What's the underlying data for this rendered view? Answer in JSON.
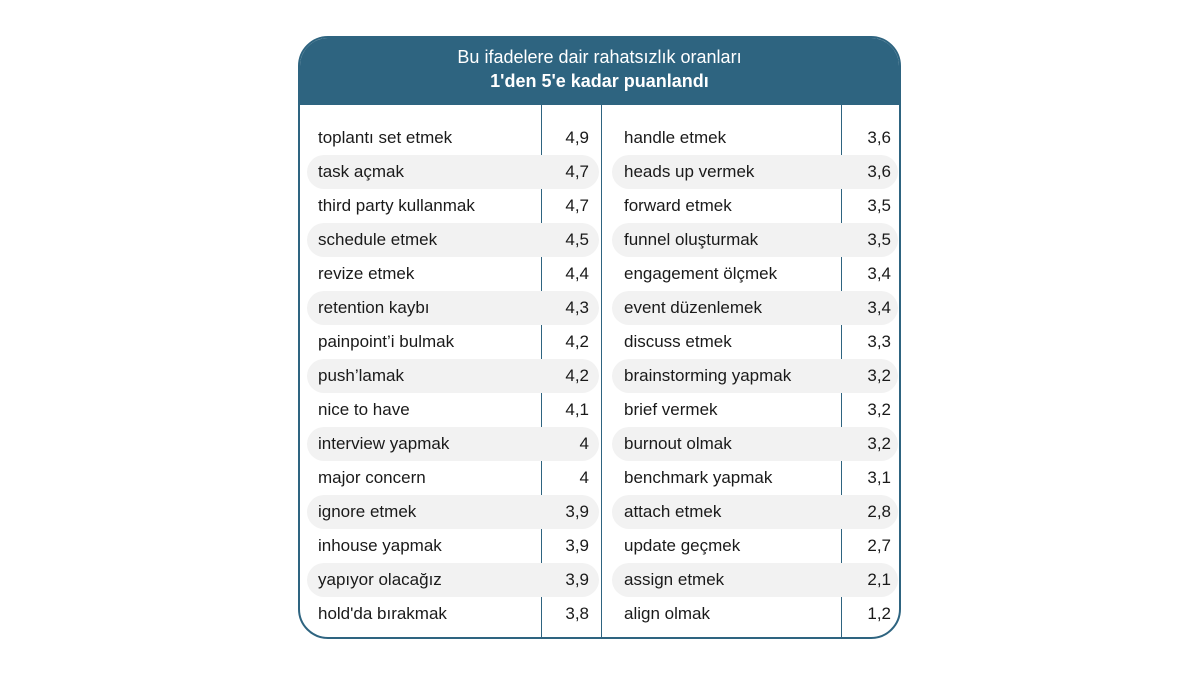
{
  "chart_data": {
    "type": "table",
    "title": "Bu ifadelere dair rahatsızlık oranları",
    "subtitle": "1'den 5'e kadar puanlandı",
    "columns": [
      [
        {
          "label": "toplantı set etmek",
          "value": "4,9"
        },
        {
          "label": "task açmak",
          "value": "4,7"
        },
        {
          "label": "third party kullanmak",
          "value": "4,7"
        },
        {
          "label": "schedule etmek",
          "value": "4,5"
        },
        {
          "label": "revize etmek",
          "value": "4,4"
        },
        {
          "label": "retention kaybı",
          "value": "4,3"
        },
        {
          "label": "painpoint’i bulmak",
          "value": "4,2"
        },
        {
          "label": "push’lamak",
          "value": "4,2"
        },
        {
          "label": "nice to have",
          "value": "4,1"
        },
        {
          "label": "interview yapmak",
          "value": "4"
        },
        {
          "label": "major concern",
          "value": "4"
        },
        {
          "label": "ignore etmek",
          "value": "3,9"
        },
        {
          "label": "inhouse yapmak",
          "value": "3,9"
        },
        {
          "label": "yapıyor olacağız",
          "value": "3,9"
        },
        {
          "label": "hold'da bırakmak",
          "value": "3,8"
        }
      ],
      [
        {
          "label": "handle etmek",
          "value": "3,6"
        },
        {
          "label": "heads up vermek",
          "value": "3,6"
        },
        {
          "label": "forward etmek",
          "value": "3,5"
        },
        {
          "label": "funnel oluşturmak",
          "value": "3,5"
        },
        {
          "label": "engagement ölçmek",
          "value": "3,4"
        },
        {
          "label": "event düzenlemek",
          "value": "3,4"
        },
        {
          "label": "discuss etmek",
          "value": "3,3"
        },
        {
          "label": "brainstorming yapmak",
          "value": "3,2"
        },
        {
          "label": "brief vermek",
          "value": "3,2"
        },
        {
          "label": "burnout olmak",
          "value": "3,2"
        },
        {
          "label": "benchmark yapmak",
          "value": "3,1"
        },
        {
          "label": "attach etmek",
          "value": "2,8"
        },
        {
          "label": "update geçmek",
          "value": "2,7"
        },
        {
          "label": "assign etmek",
          "value": "2,1"
        },
        {
          "label": "align olmak",
          "value": "1,2"
        }
      ]
    ]
  },
  "colors": {
    "header": "#2e6480",
    "band": "#f2f2f2",
    "text": "#1a1a1a"
  }
}
